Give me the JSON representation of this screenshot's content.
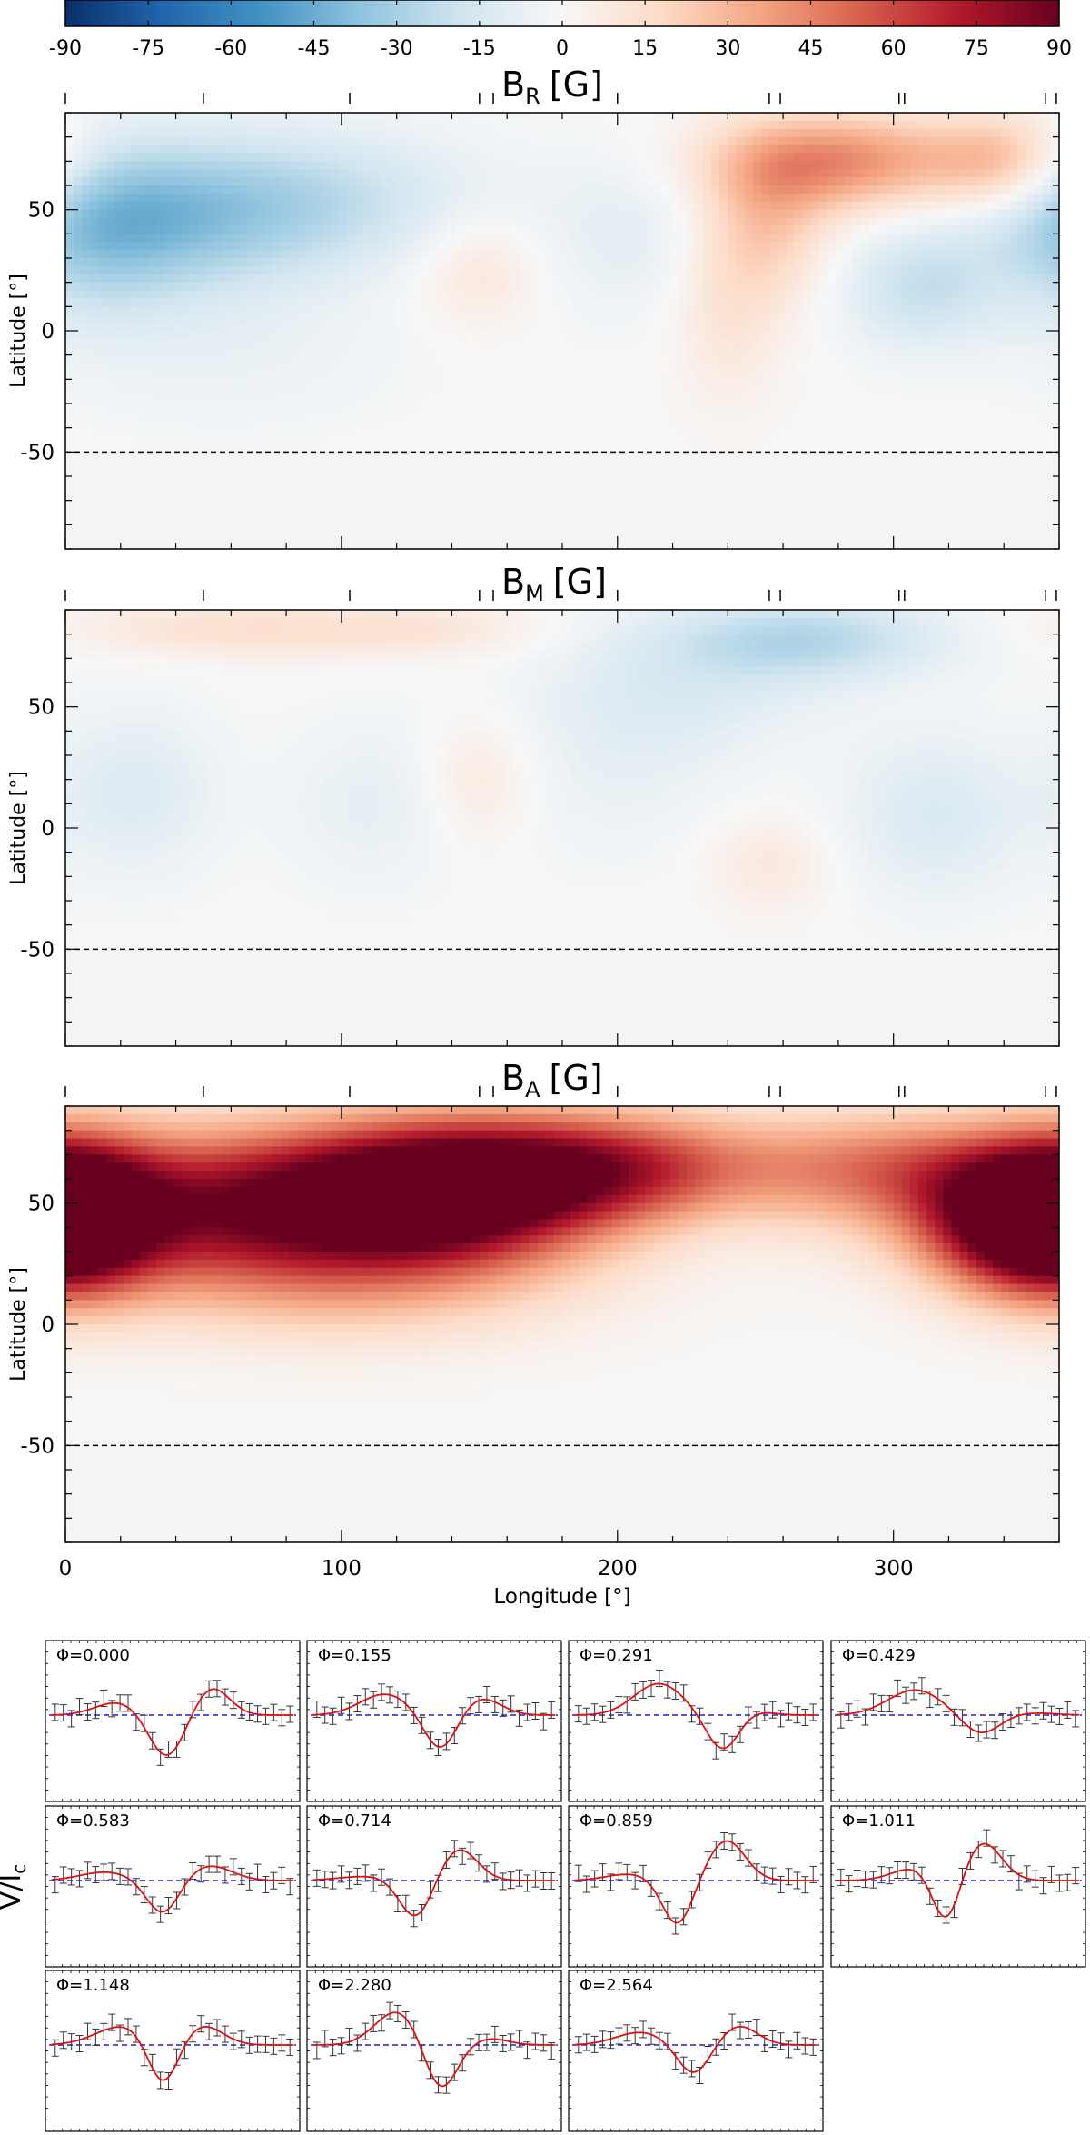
{
  "colorbar": {
    "ticks": [
      -90,
      -75,
      -60,
      -45,
      -30,
      -15,
      0,
      15,
      30,
      45,
      60,
      75,
      90
    ],
    "range": [
      -90,
      90
    ],
    "colors": [
      "#08306b",
      "#2166ac",
      "#4393c3",
      "#92c5de",
      "#d1e5f0",
      "#f7f7f7",
      "#fddbc7",
      "#f4a582",
      "#d6604d",
      "#b2182b",
      "#67001f"
    ]
  },
  "maps": {
    "common": {
      "ylabel": "Latitude [°]",
      "ytick_labels": [
        50,
        0,
        -50
      ],
      "xtick_labels": [
        0,
        100,
        200,
        300
      ],
      "xlim": [
        0,
        360
      ],
      "ylim": [
        -90,
        90
      ],
      "visible_limit_latitude": -50,
      "phase_markers_longitude": [
        0,
        50,
        103,
        150,
        155,
        200,
        255,
        259,
        302,
        304,
        355,
        359
      ],
      "hidden_region_color": "#f4f4f4"
    },
    "panels": [
      {
        "id": "br",
        "title_main": "B",
        "title_sub": "R",
        "title_unit": "[G]",
        "show_xlabels": false,
        "blobs": [
          {
            "lon": 45,
            "lat": 48,
            "value": -30,
            "wlon": 40,
            "wlat": 22
          },
          {
            "lon": 10,
            "lat": 40,
            "value": -22,
            "wlon": 25,
            "wlat": 25
          },
          {
            "lon": 100,
            "lat": 55,
            "value": -14,
            "wlon": 40,
            "wlat": 20
          },
          {
            "lon": 150,
            "lat": 25,
            "value": 12,
            "wlon": 16,
            "wlat": 16
          },
          {
            "lon": 205,
            "lat": 40,
            "value": -9,
            "wlon": 25,
            "wlat": 25
          },
          {
            "lon": 280,
            "lat": 70,
            "value": 42,
            "wlon": 32,
            "wlat": 14
          },
          {
            "lon": 255,
            "lat": 45,
            "value": 22,
            "wlon": 16,
            "wlat": 22
          },
          {
            "lon": 240,
            "lat": 10,
            "value": 12,
            "wlon": 14,
            "wlat": 28
          },
          {
            "lon": 310,
            "lat": 18,
            "value": -20,
            "wlon": 20,
            "wlat": 18
          },
          {
            "lon": 340,
            "lat": 70,
            "value": 28,
            "wlon": 18,
            "wlat": 14
          },
          {
            "lon": 60,
            "lat": -10,
            "value": -6,
            "wlon": 45,
            "wlat": 22
          }
        ]
      },
      {
        "id": "bm",
        "title_main": "B",
        "title_sub": "M",
        "title_unit": "[G]",
        "show_xlabels": false,
        "blobs": [
          {
            "lon": 60,
            "lat": 82,
            "value": 14,
            "wlon": 40,
            "wlat": 8
          },
          {
            "lon": 130,
            "lat": 82,
            "value": 10,
            "wlon": 30,
            "wlat": 8
          },
          {
            "lon": 270,
            "lat": 78,
            "value": -24,
            "wlon": 35,
            "wlat": 12
          },
          {
            "lon": 230,
            "lat": 60,
            "value": -10,
            "wlon": 35,
            "wlat": 20
          },
          {
            "lon": 25,
            "lat": 15,
            "value": -12,
            "wlon": 22,
            "wlat": 25
          },
          {
            "lon": 110,
            "lat": 10,
            "value": -8,
            "wlon": 22,
            "wlat": 25
          },
          {
            "lon": 150,
            "lat": 20,
            "value": 10,
            "wlon": 14,
            "wlat": 18
          },
          {
            "lon": 255,
            "lat": -15,
            "value": 10,
            "wlon": 16,
            "wlat": 14
          },
          {
            "lon": 315,
            "lat": 5,
            "value": -13,
            "wlon": 24,
            "wlat": 25
          },
          {
            "lon": 200,
            "lat": 30,
            "value": -7,
            "wlon": 30,
            "wlat": 30
          }
        ]
      },
      {
        "id": "ba",
        "title_main": "B",
        "title_sub": "A",
        "title_unit": "[G]",
        "show_xlabels": true,
        "xlabel": "Longitude [°]",
        "blobs": [
          {
            "lon": 60,
            "lat": 50,
            "value": 72,
            "wlon": 70,
            "wlat": 22
          },
          {
            "lon": 135,
            "lat": 55,
            "value": 74,
            "wlon": 40,
            "wlat": 20
          },
          {
            "lon": 195,
            "lat": 65,
            "value": 62,
            "wlon": 45,
            "wlat": 16
          },
          {
            "lon": 345,
            "lat": 42,
            "value": 75,
            "wlon": 24,
            "wlat": 20
          },
          {
            "lon": 5,
            "lat": 45,
            "value": 55,
            "wlon": 20,
            "wlat": 22
          },
          {
            "lon": 100,
            "lat": 20,
            "value": 25,
            "wlon": 60,
            "wlat": 20
          },
          {
            "lon": 300,
            "lat": 65,
            "value": 35,
            "wlon": 35,
            "wlat": 16
          }
        ]
      }
    ]
  },
  "profiles": {
    "ylabel": "V/I",
    "ylabel_sub": "c",
    "panels": [
      {
        "phase": "Φ=0.000",
        "comps": [
          [
            -0.45,
            0.18,
            0.3
          ],
          [
            -0.05,
            0.14,
            -1.0
          ],
          [
            0.32,
            0.14,
            0.65
          ]
        ]
      },
      {
        "phase": "Φ=0.155",
        "comps": [
          [
            -0.4,
            0.2,
            0.5
          ],
          [
            0.05,
            0.13,
            -0.85
          ],
          [
            0.38,
            0.16,
            0.4
          ]
        ]
      },
      {
        "phase": "Φ=0.291",
        "comps": [
          [
            -0.3,
            0.2,
            0.75
          ],
          [
            0.22,
            0.13,
            -0.85
          ],
          [
            0.45,
            0.15,
            0.1
          ]
        ]
      },
      {
        "phase": "Φ=0.429",
        "comps": [
          [
            -0.35,
            0.22,
            0.6
          ],
          [
            0.18,
            0.15,
            -0.45
          ],
          [
            0.6,
            0.18,
            0.05
          ]
        ]
      },
      {
        "phase": "Φ=0.583",
        "comps": [
          [
            -0.55,
            0.2,
            0.2
          ],
          [
            -0.08,
            0.13,
            -0.8
          ],
          [
            0.3,
            0.18,
            0.35
          ]
        ]
      },
      {
        "phase": "Φ=0.714",
        "comps": [
          [
            -0.55,
            0.22,
            0.1
          ],
          [
            -0.15,
            0.13,
            -0.9
          ],
          [
            0.2,
            0.15,
            0.75
          ]
        ]
      },
      {
        "phase": "Φ=0.859",
        "comps": [
          [
            -0.55,
            0.18,
            0.15
          ],
          [
            -0.15,
            0.12,
            -1.05
          ],
          [
            0.25,
            0.15,
            0.95
          ]
        ]
      },
      {
        "phase": "Φ=1.011",
        "comps": [
          [
            -0.35,
            0.18,
            0.3
          ],
          [
            -0.1,
            0.11,
            -1.1
          ],
          [
            0.2,
            0.15,
            0.9
          ]
        ]
      },
      {
        "phase": "Φ=1.148",
        "comps": [
          [
            -0.4,
            0.22,
            0.45
          ],
          [
            -0.08,
            0.12,
            -1.05
          ],
          [
            0.25,
            0.16,
            0.45
          ]
        ]
      },
      {
        "phase": "Φ=2.280",
        "comps": [
          [
            -0.3,
            0.18,
            0.8
          ],
          [
            0.05,
            0.13,
            -1.1
          ],
          [
            0.45,
            0.15,
            0.15
          ]
        ]
      },
      {
        "phase": "Φ=2.564",
        "comps": [
          [
            -0.45,
            0.2,
            0.3
          ],
          [
            -0.02,
            0.13,
            -0.7
          ],
          [
            0.35,
            0.15,
            0.45
          ]
        ]
      }
    ]
  }
}
